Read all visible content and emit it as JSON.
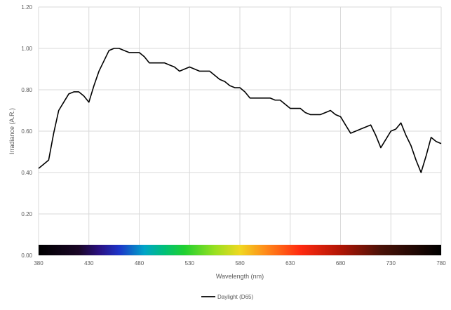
{
  "chart_data": {
    "type": "line",
    "title": "",
    "xlabel": "Wavelength (nm)",
    "ylabel": "Irradiance (A.R.)",
    "xlim": [
      380,
      780
    ],
    "ylim": [
      0,
      1.2
    ],
    "x_ticks": [
      "380",
      "430",
      "480",
      "530",
      "580",
      "630",
      "680",
      "730",
      "780"
    ],
    "y_ticks": [
      "0.00",
      "0.20",
      "0.40",
      "0.60",
      "0.80",
      "1.00",
      "1.20"
    ],
    "grid": true,
    "legend_position": "bottom",
    "series": [
      {
        "name": "Daylight (D65)",
        "color": "#000000",
        "x": [
          380,
          385,
          390,
          395,
          400,
          405,
          410,
          415,
          420,
          425,
          430,
          435,
          440,
          445,
          450,
          455,
          460,
          465,
          470,
          475,
          480,
          485,
          490,
          495,
          500,
          505,
          510,
          515,
          520,
          525,
          530,
          535,
          540,
          545,
          550,
          555,
          560,
          565,
          570,
          575,
          580,
          585,
          590,
          595,
          600,
          605,
          610,
          615,
          620,
          625,
          630,
          635,
          640,
          645,
          650,
          655,
          660,
          665,
          670,
          675,
          680,
          685,
          690,
          695,
          700,
          705,
          710,
          715,
          720,
          725,
          730,
          735,
          740,
          745,
          750,
          755,
          760,
          765,
          770,
          775,
          780
        ],
        "y": [
          0.42,
          0.44,
          0.46,
          0.59,
          0.7,
          0.74,
          0.78,
          0.79,
          0.79,
          0.77,
          0.74,
          0.82,
          0.89,
          0.94,
          0.99,
          1.0,
          1.0,
          0.99,
          0.98,
          0.98,
          0.98,
          0.96,
          0.93,
          0.93,
          0.93,
          0.93,
          0.92,
          0.91,
          0.89,
          0.9,
          0.91,
          0.9,
          0.89,
          0.89,
          0.89,
          0.87,
          0.85,
          0.84,
          0.82,
          0.81,
          0.81,
          0.79,
          0.76,
          0.76,
          0.76,
          0.76,
          0.76,
          0.75,
          0.75,
          0.73,
          0.71,
          0.71,
          0.71,
          0.69,
          0.68,
          0.68,
          0.68,
          0.69,
          0.7,
          0.68,
          0.67,
          0.63,
          0.59,
          0.6,
          0.61,
          0.62,
          0.63,
          0.58,
          0.52,
          0.56,
          0.6,
          0.61,
          0.64,
          0.58,
          0.53,
          0.46,
          0.4,
          0.48,
          0.57,
          0.55,
          0.54
        ]
      }
    ],
    "spectrum_bar": {
      "label": "",
      "stops": [
        {
          "wl": 380,
          "color": "#000000"
        },
        {
          "wl": 420,
          "color": "#1a0626"
        },
        {
          "wl": 440,
          "color": "#2a1080"
        },
        {
          "wl": 460,
          "color": "#1d34c8"
        },
        {
          "wl": 485,
          "color": "#00a4c8"
        },
        {
          "wl": 505,
          "color": "#00c078"
        },
        {
          "wl": 525,
          "color": "#20d030"
        },
        {
          "wl": 555,
          "color": "#98e020"
        },
        {
          "wl": 580,
          "color": "#f0d820"
        },
        {
          "wl": 605,
          "color": "#ff8c1a"
        },
        {
          "wl": 640,
          "color": "#ff2a10"
        },
        {
          "wl": 680,
          "color": "#b01505"
        },
        {
          "wl": 720,
          "color": "#4a1208"
        },
        {
          "wl": 780,
          "color": "#000000"
        }
      ]
    }
  }
}
